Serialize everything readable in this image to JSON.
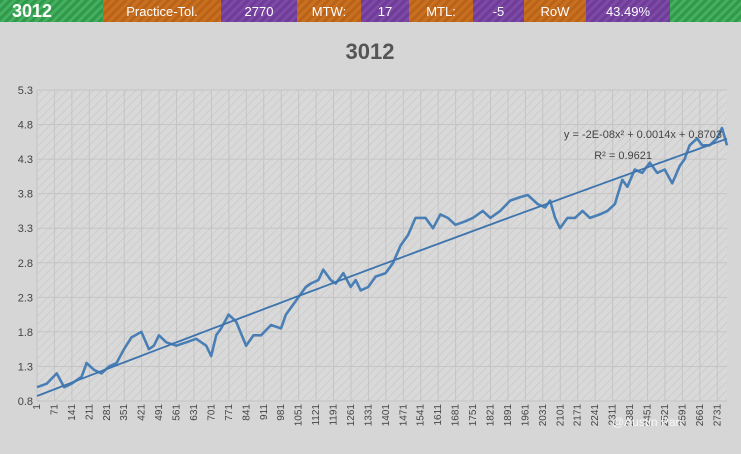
{
  "header": {
    "title": "3012",
    "items": [
      {
        "label": "Practice-Tol.",
        "color": "orange"
      },
      {
        "label": "2770",
        "color": "purple"
      },
      {
        "label": "MTW:",
        "color": "orange"
      },
      {
        "label": "17",
        "color": "purple"
      },
      {
        "label": "MTL:",
        "color": "orange"
      },
      {
        "label": "-5",
        "color": "purple"
      },
      {
        "label": "RoW",
        "color": "orange"
      },
      {
        "label": "43.49%",
        "color": "purple"
      }
    ]
  },
  "colors": {
    "series": "#4a7fb5",
    "trendline": "#3d74ad",
    "grid": "#c4c4c4",
    "background": "#d6d6d6"
  },
  "watermark": "@Austin Pan",
  "chart_data": {
    "type": "line",
    "title": "3012",
    "xlabel": "",
    "ylabel": "",
    "ylim": [
      0.8,
      5.3
    ],
    "yticks": [
      "0.8",
      "1.3",
      "1.8",
      "2.3",
      "2.8",
      "3.3",
      "3.8",
      "4.3",
      "4.8",
      "5.3"
    ],
    "xlim": [
      1,
      2770
    ],
    "xticks": [
      1,
      71,
      141,
      211,
      281,
      351,
      421,
      491,
      561,
      631,
      701,
      771,
      841,
      911,
      981,
      1051,
      1121,
      1191,
      1261,
      1331,
      1401,
      1471,
      1541,
      1611,
      1681,
      1751,
      1821,
      1891,
      1961,
      2031,
      2101,
      2171,
      2241,
      2311,
      2381,
      2451,
      2521,
      2591,
      2661,
      2731
    ],
    "grid": true,
    "series": [
      {
        "x": [
          1,
          40,
          80,
          110,
          140,
          180,
          200,
          230,
          260,
          290,
          320,
          350,
          380,
          420,
          450,
          470,
          490,
          520,
          560,
          600,
          640,
          680,
          700,
          720,
          740,
          770,
          800,
          840,
          870,
          900,
          940,
          980,
          1000,
          1020,
          1050,
          1080,
          1100,
          1130,
          1150,
          1180,
          1200,
          1230,
          1260,
          1280,
          1300,
          1330,
          1360,
          1400,
          1430,
          1460,
          1490,
          1520,
          1560,
          1590,
          1620,
          1650,
          1680,
          1720,
          1750,
          1790,
          1820,
          1860,
          1900,
          1940,
          1970,
          2010,
          2040,
          2060,
          2080,
          2100,
          2130,
          2160,
          2190,
          2220,
          2260,
          2290,
          2320,
          2350,
          2370,
          2400,
          2430,
          2460,
          2490,
          2520,
          2550,
          2580,
          2600,
          2620,
          2650,
          2670,
          2700,
          2730,
          2750,
          2770
        ],
        "y": [
          1.0,
          1.05,
          1.2,
          1.0,
          1.05,
          1.15,
          1.35,
          1.25,
          1.2,
          1.3,
          1.35,
          1.55,
          1.72,
          1.8,
          1.55,
          1.6,
          1.75,
          1.65,
          1.6,
          1.65,
          1.7,
          1.6,
          1.45,
          1.75,
          1.85,
          2.05,
          1.95,
          1.6,
          1.75,
          1.75,
          1.9,
          1.85,
          2.05,
          2.15,
          2.3,
          2.45,
          2.5,
          2.55,
          2.7,
          2.55,
          2.5,
          2.65,
          2.45,
          2.55,
          2.4,
          2.45,
          2.6,
          2.65,
          2.8,
          3.05,
          3.2,
          3.45,
          3.45,
          3.3,
          3.5,
          3.45,
          3.35,
          3.4,
          3.45,
          3.55,
          3.45,
          3.55,
          3.7,
          3.75,
          3.78,
          3.65,
          3.6,
          3.7,
          3.45,
          3.3,
          3.45,
          3.45,
          3.55,
          3.45,
          3.5,
          3.55,
          3.65,
          4.0,
          3.9,
          4.15,
          4.1,
          4.25,
          4.1,
          4.15,
          3.95,
          4.2,
          4.3,
          4.5,
          4.6,
          4.5,
          4.5,
          4.6,
          4.75,
          4.5
        ]
      }
    ],
    "trendline": {
      "equation": "y = -2E-08x² + 0.0014x + 0.8703",
      "r2": "R² = 0.9621",
      "coefficients": [
        -2e-08,
        0.0014,
        0.8703
      ]
    }
  }
}
